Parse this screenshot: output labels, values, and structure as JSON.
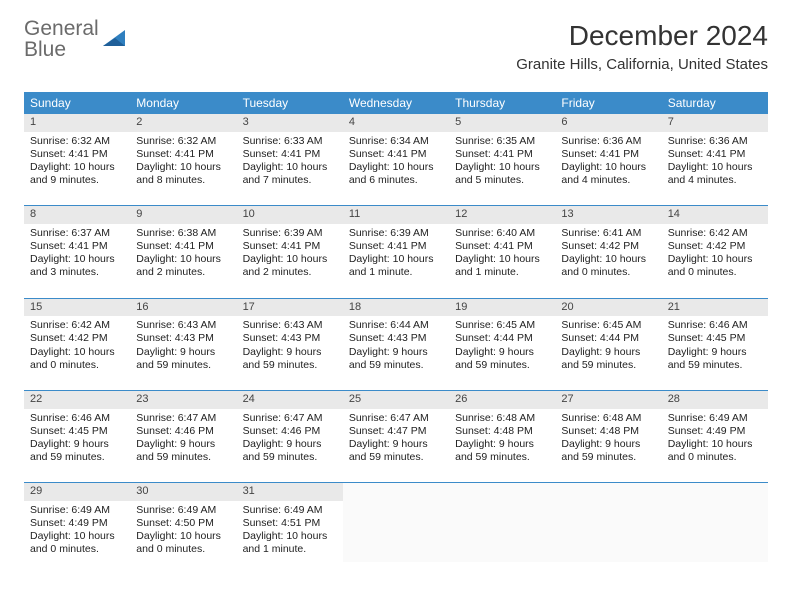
{
  "logo": {
    "line1": "General",
    "line2": "Blue"
  },
  "title": {
    "month_year": "December 2024",
    "location": "Granite Hills, California, United States"
  },
  "colors": {
    "header_bg": "#3b8bc9",
    "header_text": "#ffffff",
    "daynum_bg": "#e9e9e9",
    "border": "#3b8bc9",
    "logo_gray": "#6b6b6b",
    "logo_blue": "#2f7fbf"
  },
  "day_headers": [
    "Sunday",
    "Monday",
    "Tuesday",
    "Wednesday",
    "Thursday",
    "Friday",
    "Saturday"
  ],
  "weeks": [
    [
      {
        "n": "1",
        "sr": "Sunrise: 6:32 AM",
        "ss": "Sunset: 4:41 PM",
        "dl": "Daylight: 10 hours and 9 minutes."
      },
      {
        "n": "2",
        "sr": "Sunrise: 6:32 AM",
        "ss": "Sunset: 4:41 PM",
        "dl": "Daylight: 10 hours and 8 minutes."
      },
      {
        "n": "3",
        "sr": "Sunrise: 6:33 AM",
        "ss": "Sunset: 4:41 PM",
        "dl": "Daylight: 10 hours and 7 minutes."
      },
      {
        "n": "4",
        "sr": "Sunrise: 6:34 AM",
        "ss": "Sunset: 4:41 PM",
        "dl": "Daylight: 10 hours and 6 minutes."
      },
      {
        "n": "5",
        "sr": "Sunrise: 6:35 AM",
        "ss": "Sunset: 4:41 PM",
        "dl": "Daylight: 10 hours and 5 minutes."
      },
      {
        "n": "6",
        "sr": "Sunrise: 6:36 AM",
        "ss": "Sunset: 4:41 PM",
        "dl": "Daylight: 10 hours and 4 minutes."
      },
      {
        "n": "7",
        "sr": "Sunrise: 6:36 AM",
        "ss": "Sunset: 4:41 PM",
        "dl": "Daylight: 10 hours and 4 minutes."
      }
    ],
    [
      {
        "n": "8",
        "sr": "Sunrise: 6:37 AM",
        "ss": "Sunset: 4:41 PM",
        "dl": "Daylight: 10 hours and 3 minutes."
      },
      {
        "n": "9",
        "sr": "Sunrise: 6:38 AM",
        "ss": "Sunset: 4:41 PM",
        "dl": "Daylight: 10 hours and 2 minutes."
      },
      {
        "n": "10",
        "sr": "Sunrise: 6:39 AM",
        "ss": "Sunset: 4:41 PM",
        "dl": "Daylight: 10 hours and 2 minutes."
      },
      {
        "n": "11",
        "sr": "Sunrise: 6:39 AM",
        "ss": "Sunset: 4:41 PM",
        "dl": "Daylight: 10 hours and 1 minute."
      },
      {
        "n": "12",
        "sr": "Sunrise: 6:40 AM",
        "ss": "Sunset: 4:41 PM",
        "dl": "Daylight: 10 hours and 1 minute."
      },
      {
        "n": "13",
        "sr": "Sunrise: 6:41 AM",
        "ss": "Sunset: 4:42 PM",
        "dl": "Daylight: 10 hours and 0 minutes."
      },
      {
        "n": "14",
        "sr": "Sunrise: 6:42 AM",
        "ss": "Sunset: 4:42 PM",
        "dl": "Daylight: 10 hours and 0 minutes."
      }
    ],
    [
      {
        "n": "15",
        "sr": "Sunrise: 6:42 AM",
        "ss": "Sunset: 4:42 PM",
        "dl": "Daylight: 10 hours and 0 minutes."
      },
      {
        "n": "16",
        "sr": "Sunrise: 6:43 AM",
        "ss": "Sunset: 4:43 PM",
        "dl": "Daylight: 9 hours and 59 minutes."
      },
      {
        "n": "17",
        "sr": "Sunrise: 6:43 AM",
        "ss": "Sunset: 4:43 PM",
        "dl": "Daylight: 9 hours and 59 minutes."
      },
      {
        "n": "18",
        "sr": "Sunrise: 6:44 AM",
        "ss": "Sunset: 4:43 PM",
        "dl": "Daylight: 9 hours and 59 minutes."
      },
      {
        "n": "19",
        "sr": "Sunrise: 6:45 AM",
        "ss": "Sunset: 4:44 PM",
        "dl": "Daylight: 9 hours and 59 minutes."
      },
      {
        "n": "20",
        "sr": "Sunrise: 6:45 AM",
        "ss": "Sunset: 4:44 PM",
        "dl": "Daylight: 9 hours and 59 minutes."
      },
      {
        "n": "21",
        "sr": "Sunrise: 6:46 AM",
        "ss": "Sunset: 4:45 PM",
        "dl": "Daylight: 9 hours and 59 minutes."
      }
    ],
    [
      {
        "n": "22",
        "sr": "Sunrise: 6:46 AM",
        "ss": "Sunset: 4:45 PM",
        "dl": "Daylight: 9 hours and 59 minutes."
      },
      {
        "n": "23",
        "sr": "Sunrise: 6:47 AM",
        "ss": "Sunset: 4:46 PM",
        "dl": "Daylight: 9 hours and 59 minutes."
      },
      {
        "n": "24",
        "sr": "Sunrise: 6:47 AM",
        "ss": "Sunset: 4:46 PM",
        "dl": "Daylight: 9 hours and 59 minutes."
      },
      {
        "n": "25",
        "sr": "Sunrise: 6:47 AM",
        "ss": "Sunset: 4:47 PM",
        "dl": "Daylight: 9 hours and 59 minutes."
      },
      {
        "n": "26",
        "sr": "Sunrise: 6:48 AM",
        "ss": "Sunset: 4:48 PM",
        "dl": "Daylight: 9 hours and 59 minutes."
      },
      {
        "n": "27",
        "sr": "Sunrise: 6:48 AM",
        "ss": "Sunset: 4:48 PM",
        "dl": "Daylight: 9 hours and 59 minutes."
      },
      {
        "n": "28",
        "sr": "Sunrise: 6:49 AM",
        "ss": "Sunset: 4:49 PM",
        "dl": "Daylight: 10 hours and 0 minutes."
      }
    ],
    [
      {
        "n": "29",
        "sr": "Sunrise: 6:49 AM",
        "ss": "Sunset: 4:49 PM",
        "dl": "Daylight: 10 hours and 0 minutes."
      },
      {
        "n": "30",
        "sr": "Sunrise: 6:49 AM",
        "ss": "Sunset: 4:50 PM",
        "dl": "Daylight: 10 hours and 0 minutes."
      },
      {
        "n": "31",
        "sr": "Sunrise: 6:49 AM",
        "ss": "Sunset: 4:51 PM",
        "dl": "Daylight: 10 hours and 1 minute."
      },
      null,
      null,
      null,
      null
    ]
  ]
}
